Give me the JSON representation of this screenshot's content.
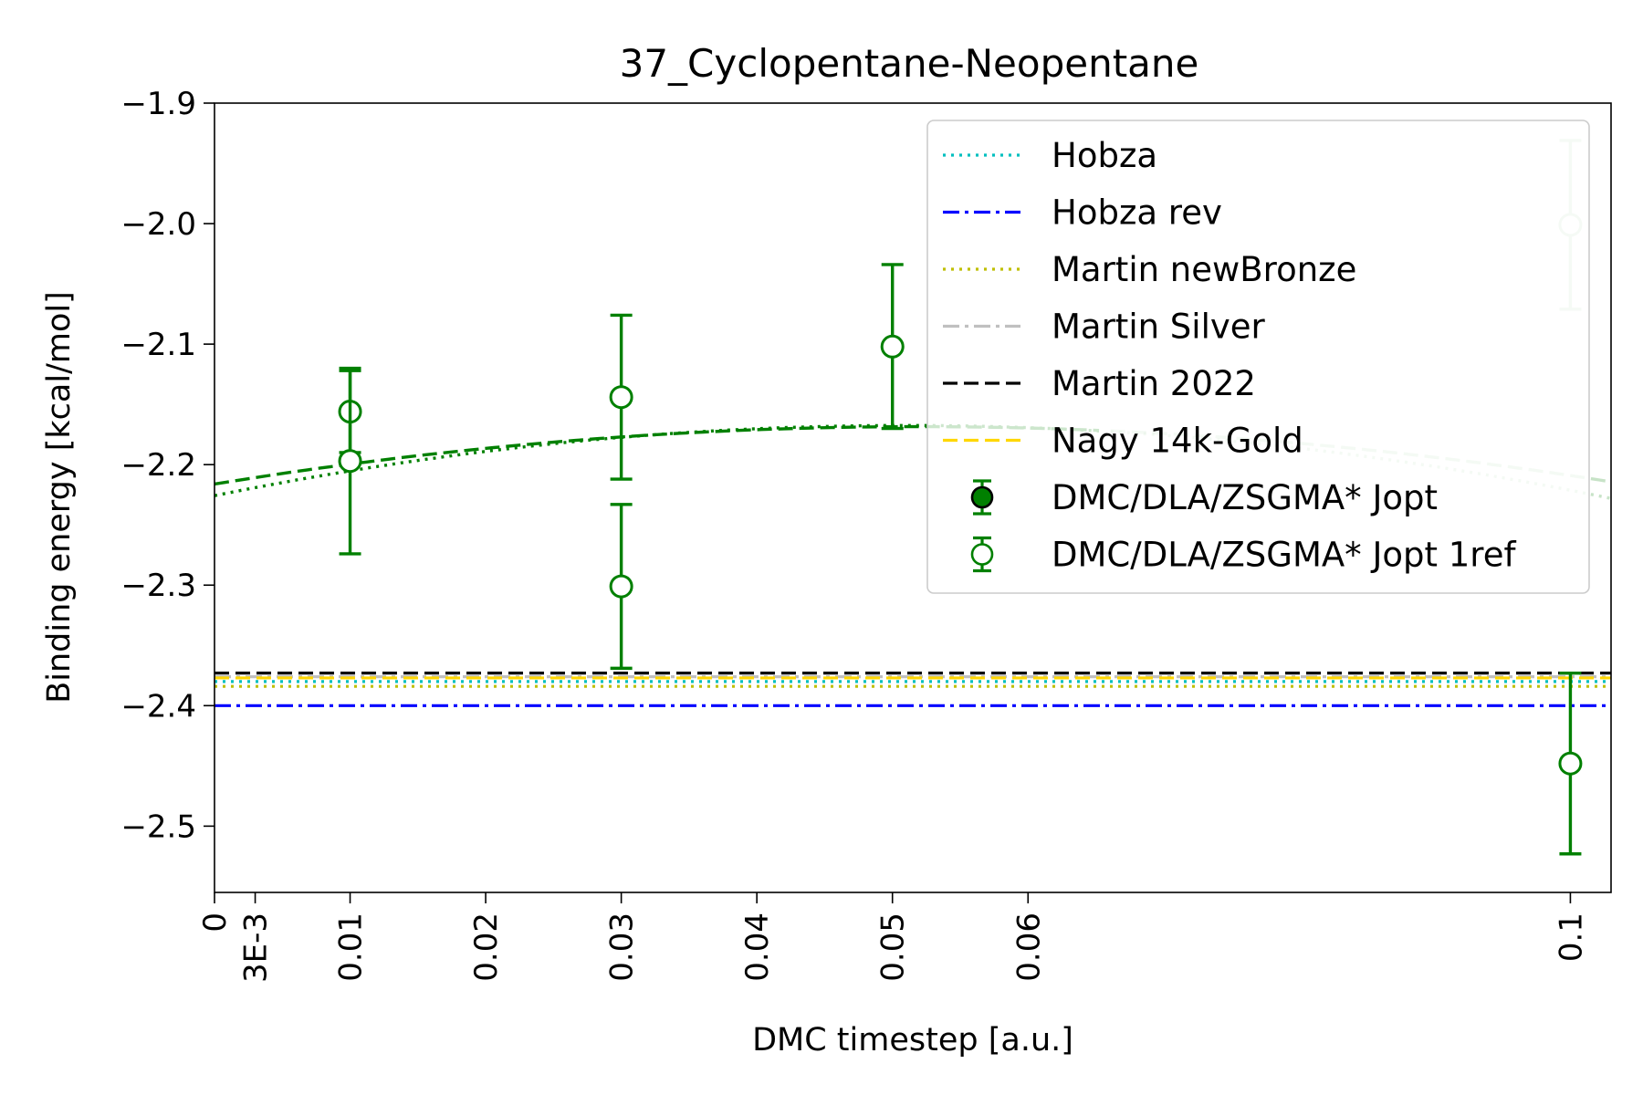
{
  "chart_data": {
    "type": "scatter",
    "title": "37_Cyclopentane-Neopentane",
    "xlabel": "DMC timestep [a.u.]",
    "ylabel": "Binding energy [kcal/mol]",
    "xlim": [
      0,
      0.103
    ],
    "ylim": [
      -2.555,
      -1.9
    ],
    "xticks": [
      {
        "value": 0,
        "label": "0"
      },
      {
        "value": 0.003,
        "label": "3E-3"
      },
      {
        "value": 0.01,
        "label": "0.01"
      },
      {
        "value": 0.02,
        "label": "0.02"
      },
      {
        "value": 0.03,
        "label": "0.03"
      },
      {
        "value": 0.04,
        "label": "0.04"
      },
      {
        "value": 0.05,
        "label": "0.05"
      },
      {
        "value": 0.06,
        "label": "0.06"
      },
      {
        "value": 0.1,
        "label": "0.1"
      }
    ],
    "yticks": [
      {
        "value": -1.9,
        "label": "−1.9"
      },
      {
        "value": -2.0,
        "label": "−2.0"
      },
      {
        "value": -2.1,
        "label": "−2.1"
      },
      {
        "value": -2.2,
        "label": "−2.2"
      },
      {
        "value": -2.3,
        "label": "−2.3"
      },
      {
        "value": -2.4,
        "label": "−2.4"
      },
      {
        "value": -2.5,
        "label": "−2.5"
      }
    ],
    "grid": false,
    "legend_position": "top-right",
    "reference_lines": [
      {
        "name": "Hobza",
        "value": -2.38,
        "color": "#00bfbf",
        "style": "dotted"
      },
      {
        "name": "Hobza rev",
        "value": -2.4,
        "color": "#0000ff",
        "style": "dashdot"
      },
      {
        "name": "Martin newBronze",
        "value": -2.384,
        "color": "#bfbf00",
        "style": "dotted"
      },
      {
        "name": "Martin Silver",
        "value": -2.376,
        "color": "#c0c0c0",
        "style": "dashdot"
      },
      {
        "name": "Martin 2022",
        "value": -2.373,
        "color": "#000000",
        "style": "dashed"
      },
      {
        "name": "Nagy 14k-Gold",
        "value": -2.377,
        "color": "#ffd700",
        "style": "dashed"
      }
    ],
    "series": [
      {
        "name": "DMC/DLA/ZSGMA* Jopt",
        "marker": "filled-circle",
        "color": "#008000",
        "points": []
      },
      {
        "name": "DMC/DLA/ZSGMA* Jopt 1ref",
        "marker": "open-circle",
        "color": "#008000",
        "points": [
          {
            "x": 0.01,
            "y": -2.156,
            "err": 0.034
          },
          {
            "x": 0.01,
            "y": -2.197,
            "err": 0.077
          },
          {
            "x": 0.03,
            "y": -2.144,
            "err": 0.068
          },
          {
            "x": 0.03,
            "y": -2.301,
            "err": 0.068
          },
          {
            "x": 0.05,
            "y": -2.102,
            "err": 0.068
          },
          {
            "x": 0.1,
            "y": -2.448,
            "err": 0.075
          },
          {
            "x": 0.1,
            "y": -2.001,
            "err": 0.07,
            "faded": true
          }
        ]
      }
    ],
    "fit_curves": [
      {
        "color": "#008000",
        "style": "dashed",
        "x0": 0.052,
        "y0": -2.1685,
        "a": 17.6
      },
      {
        "color": "#008000",
        "style": "dotted",
        "x0": 0.051,
        "y0": -2.1675,
        "a": 22.4
      }
    ]
  }
}
